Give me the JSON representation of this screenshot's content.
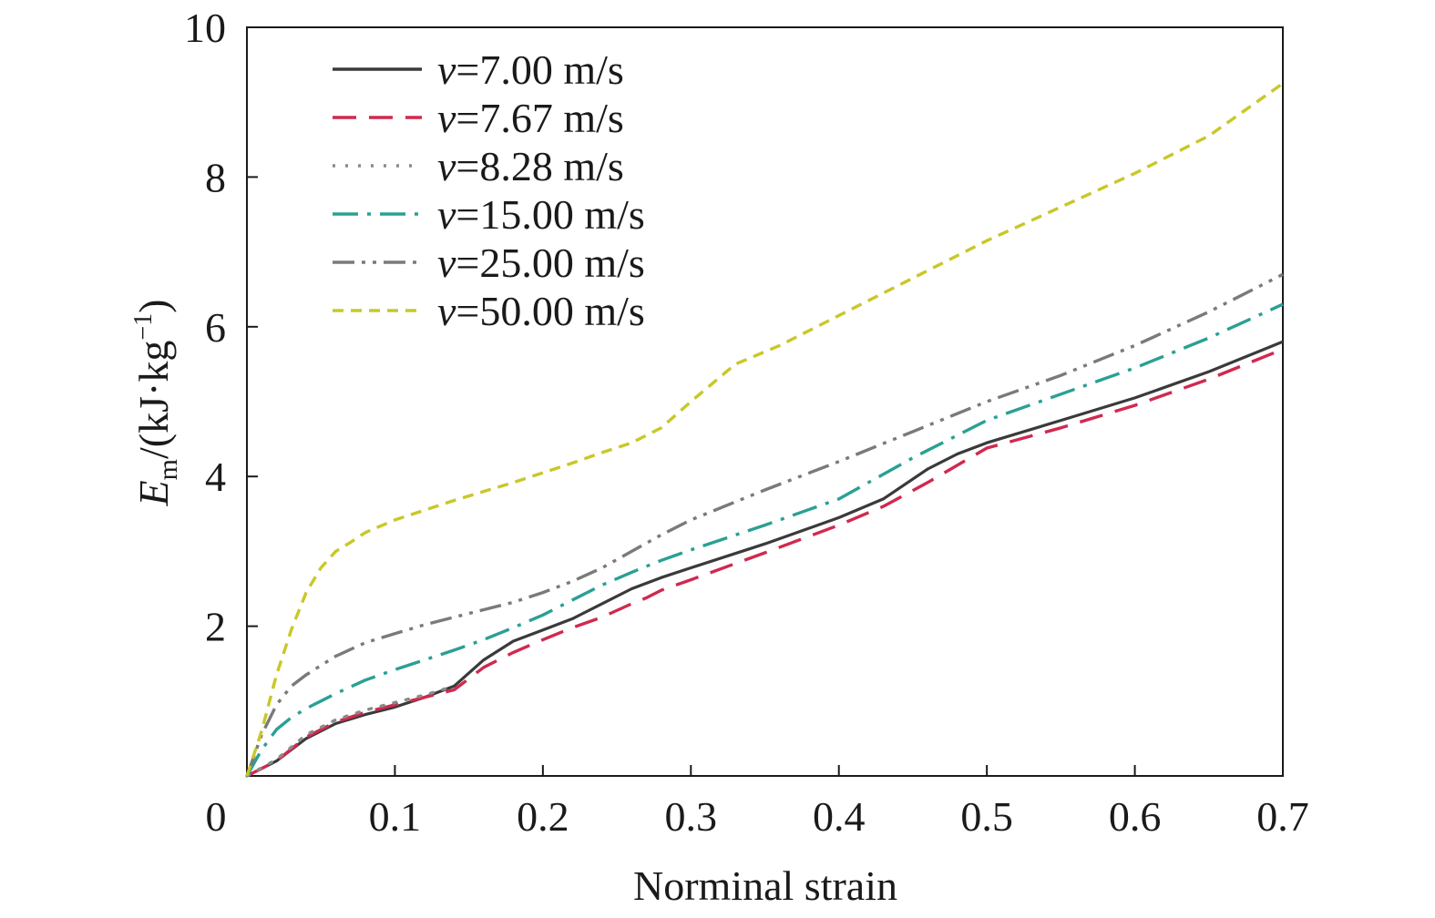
{
  "chart_data": {
    "type": "line",
    "xlabel": "Norminal strain",
    "ylabel": {
      "main": "E",
      "subscript": "m",
      "unit": "/(kJ·kg",
      "superscript": "−1",
      "close": ")"
    },
    "xlim": [
      0,
      0.7
    ],
    "ylim": [
      0,
      10
    ],
    "xticks": [
      0,
      0.1,
      0.2,
      0.3,
      0.4,
      0.5,
      0.6,
      0.7
    ],
    "xtick_labels": [
      "0",
      "0.1",
      "0.2",
      "0.3",
      "0.4",
      "0.5",
      "0.6",
      "0.7"
    ],
    "yticks": [
      2,
      4,
      6,
      8,
      10
    ],
    "ytick_labels": [
      "2",
      "4",
      "6",
      "8",
      "10"
    ],
    "grid": false,
    "legend_position": "top-left",
    "series": [
      {
        "name": "v=7.00 m/s",
        "name_var": "v",
        "name_rest": "=7.00 m/s",
        "color": "#3a3a3a",
        "dash": "solid",
        "x": [
          0,
          0.02,
          0.04,
          0.06,
          0.08,
          0.1,
          0.12,
          0.14,
          0.16,
          0.18,
          0.2,
          0.22,
          0.24,
          0.26,
          0.28,
          0.3,
          0.35,
          0.4,
          0.43,
          0.46,
          0.48,
          0.5,
          0.55,
          0.6,
          0.65,
          0.7
        ],
        "y": [
          0,
          0.2,
          0.5,
          0.7,
          0.82,
          0.92,
          1.05,
          1.2,
          1.55,
          1.8,
          1.95,
          2.1,
          2.3,
          2.5,
          2.65,
          2.78,
          3.1,
          3.45,
          3.7,
          4.1,
          4.3,
          4.45,
          4.75,
          5.05,
          5.4,
          5.8
        ]
      },
      {
        "name": "v=7.67 m/s",
        "name_var": "v",
        "name_rest": "=7.67 m/s",
        "color": "#d0294f",
        "dash": "long-dash",
        "x": [
          0,
          0.02,
          0.04,
          0.06,
          0.08,
          0.1,
          0.12,
          0.14,
          0.16,
          0.18,
          0.2,
          0.22,
          0.24,
          0.26,
          0.27,
          0.28,
          0.3,
          0.35,
          0.4,
          0.43,
          0.46,
          0.5,
          0.55,
          0.6,
          0.65,
          0.7
        ],
        "y": [
          0,
          0.2,
          0.52,
          0.72,
          0.85,
          0.95,
          1.05,
          1.15,
          1.45,
          1.65,
          1.82,
          1.98,
          2.12,
          2.3,
          2.38,
          2.48,
          2.62,
          2.98,
          3.35,
          3.6,
          3.92,
          4.38,
          4.65,
          4.95,
          5.3,
          5.7
        ]
      },
      {
        "name": "v=8.28 m/s",
        "name_var": "v",
        "name_rest": "=8.28 m/s",
        "color": "#8a8a8a",
        "dash": "dotted",
        "x": [
          0,
          0.02,
          0.04,
          0.06,
          0.08,
          0.1,
          0.12,
          0.14
        ],
        "y": [
          0,
          0.22,
          0.55,
          0.75,
          0.88,
          0.98,
          1.08,
          1.2
        ]
      },
      {
        "name": "v=15.00 m/s",
        "name_var": "v",
        "name_rest": "=15.00 m/s",
        "color": "#2aa094",
        "dash": "dash-dot",
        "x": [
          0,
          0.01,
          0.02,
          0.03,
          0.04,
          0.06,
          0.08,
          0.1,
          0.12,
          0.14,
          0.16,
          0.18,
          0.2,
          0.22,
          0.24,
          0.26,
          0.28,
          0.3,
          0.35,
          0.4,
          0.45,
          0.5,
          0.55,
          0.6,
          0.65,
          0.7
        ],
        "y": [
          0,
          0.35,
          0.62,
          0.78,
          0.9,
          1.1,
          1.28,
          1.42,
          1.55,
          1.68,
          1.82,
          1.98,
          2.15,
          2.35,
          2.55,
          2.72,
          2.88,
          3.02,
          3.35,
          3.7,
          4.25,
          4.75,
          5.1,
          5.45,
          5.85,
          6.3
        ]
      },
      {
        "name": "v=25.00 m/s",
        "name_var": "v",
        "name_rest": "=25.00 m/s",
        "color": "#7a7a7a",
        "dash": "dash-dot-dot",
        "x": [
          0,
          0.01,
          0.02,
          0.03,
          0.04,
          0.06,
          0.08,
          0.1,
          0.12,
          0.14,
          0.16,
          0.18,
          0.2,
          0.22,
          0.24,
          0.26,
          0.28,
          0.3,
          0.35,
          0.4,
          0.45,
          0.5,
          0.55,
          0.6,
          0.65,
          0.7
        ],
        "y": [
          0,
          0.55,
          0.95,
          1.2,
          1.35,
          1.6,
          1.78,
          1.9,
          2.02,
          2.12,
          2.22,
          2.32,
          2.45,
          2.6,
          2.78,
          3.0,
          3.22,
          3.42,
          3.82,
          4.2,
          4.6,
          5.0,
          5.35,
          5.75,
          6.2,
          6.7
        ]
      },
      {
        "name": "v=50.00 m/s",
        "name_var": "v",
        "name_rest": "=50.00 m/s",
        "color": "#c8c828",
        "dash": "short-dash",
        "x": [
          0,
          0.01,
          0.02,
          0.03,
          0.04,
          0.05,
          0.06,
          0.07,
          0.08,
          0.1,
          0.12,
          0.14,
          0.16,
          0.18,
          0.2,
          0.22,
          0.24,
          0.26,
          0.28,
          0.3,
          0.33,
          0.36,
          0.4,
          0.45,
          0.5,
          0.55,
          0.6,
          0.65,
          0.7
        ],
        "y": [
          0,
          0.6,
          1.35,
          1.95,
          2.45,
          2.78,
          3.0,
          3.12,
          3.25,
          3.42,
          3.55,
          3.68,
          3.8,
          3.92,
          4.05,
          4.18,
          4.32,
          4.45,
          4.65,
          5.0,
          5.5,
          5.75,
          6.15,
          6.65,
          7.15,
          7.6,
          8.05,
          8.55,
          9.25
        ]
      }
    ]
  }
}
